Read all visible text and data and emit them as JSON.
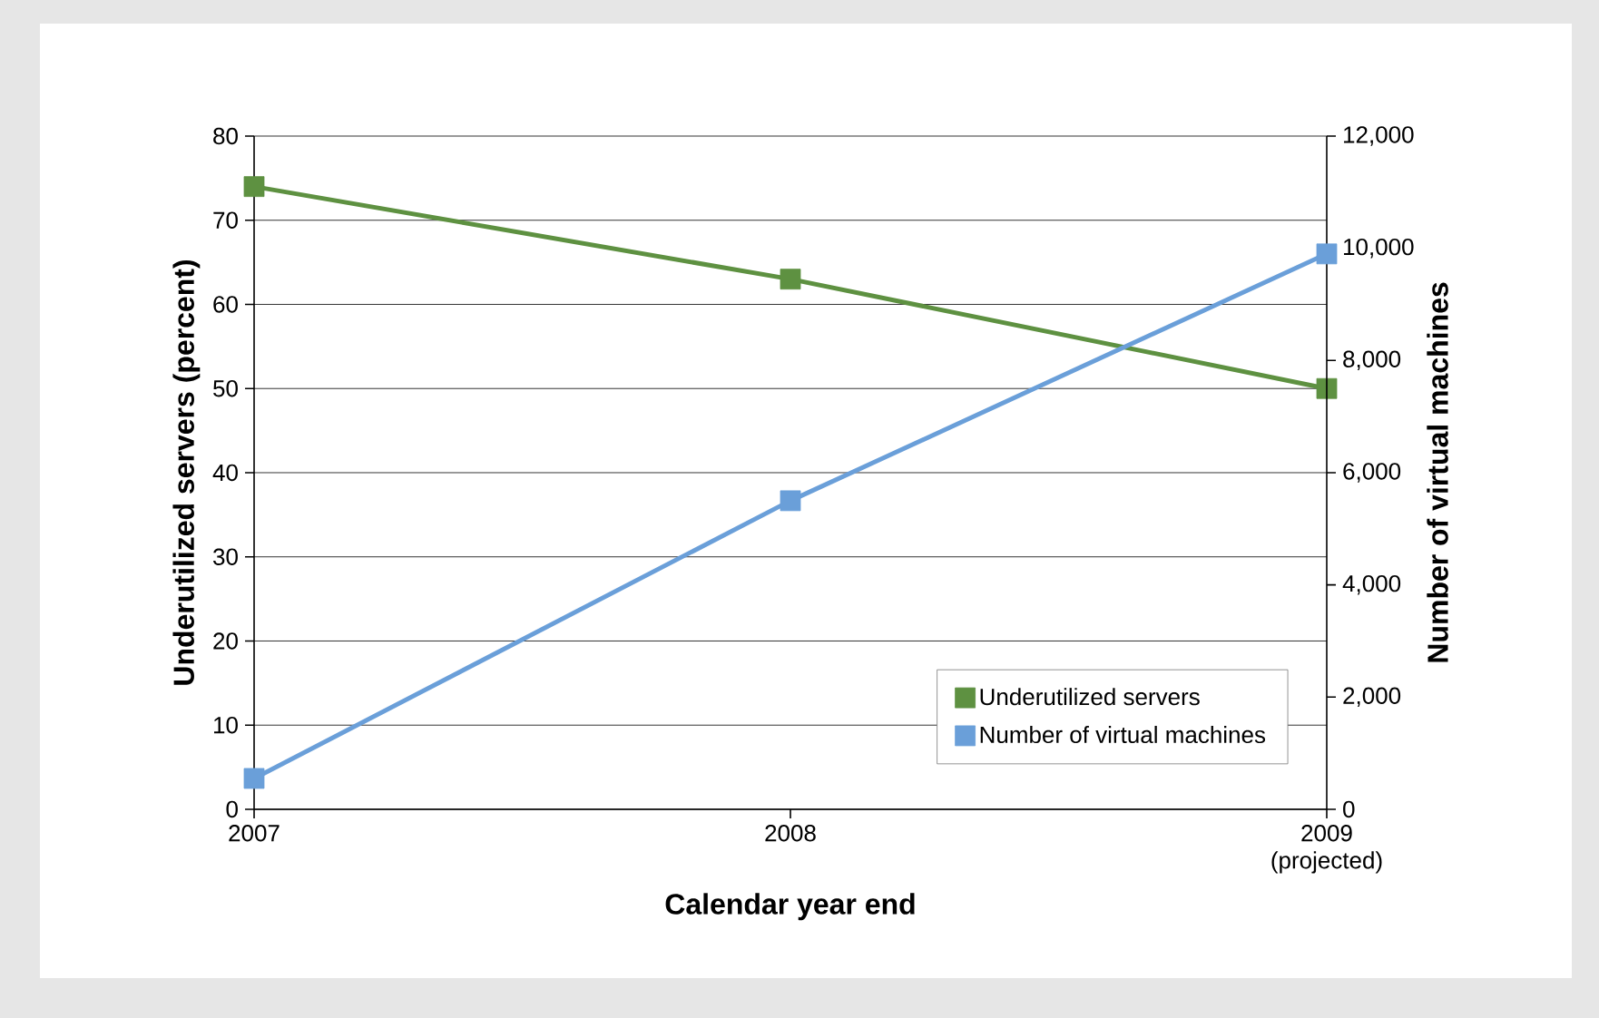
{
  "chart_data": {
    "type": "line",
    "xlabel": "Calendar year end",
    "ylabel": "Underutilized servers (percent)",
    "y2label": "Number of virtual machines",
    "categories": [
      "2007",
      "2008",
      "2009 (projected)"
    ],
    "series": [
      {
        "name": "Underutilized servers",
        "color": "#5e9141",
        "values": [
          74,
          63,
          50
        ]
      },
      {
        "name": "Number of virtual machines",
        "color": "#6a9fd9",
        "values": [
          550,
          5500,
          9900
        ],
        "axis": "y2"
      }
    ],
    "ylim": [
      0,
      80
    ],
    "yticks": [
      0,
      10,
      20,
      30,
      40,
      50,
      60,
      70,
      80
    ],
    "y2lim": [
      0,
      12000
    ],
    "y2ticks": [
      0,
      {
        "value": 2000,
        "label": "2,000"
      },
      {
        "value": 4000,
        "label": "4,000"
      },
      {
        "value": 6000,
        "label": "6,000"
      },
      {
        "value": 8000,
        "label": "8,000"
      },
      {
        "value": 10000,
        "label": "10,000"
      },
      {
        "value": 12000,
        "label": "12,000"
      }
    ],
    "grid": "y",
    "legend": "bottom right",
    "marker": "square",
    "line_style": "solid"
  }
}
